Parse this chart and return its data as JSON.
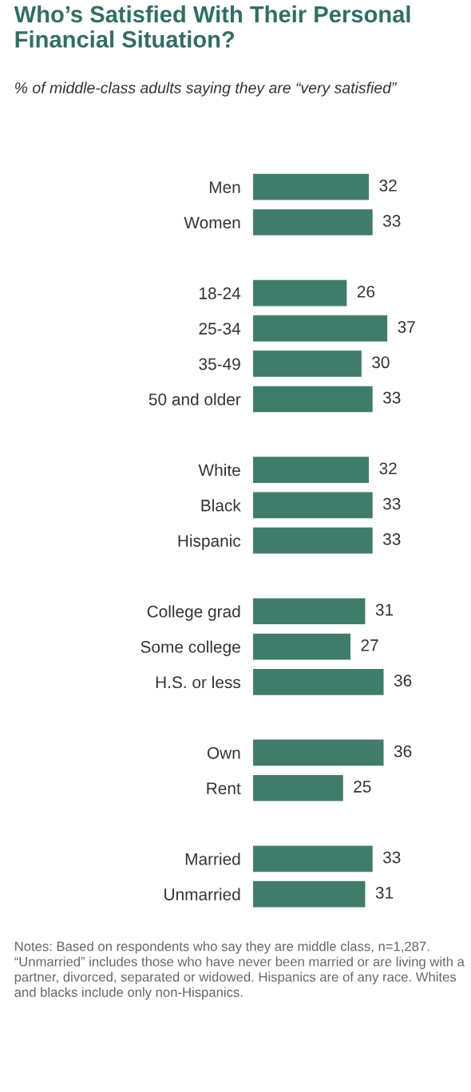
{
  "chart_data": {
    "type": "bar",
    "orientation": "horizontal",
    "title": "Who’s Satisfied With Their Personal Financial Situation?",
    "subtitle": "% of middle-class adults saying they are “very satisfied”",
    "categories": [
      "Men",
      "Women",
      null,
      "18-24",
      "25-34",
      "35-49",
      "50 and older",
      null,
      "White",
      "Black",
      "Hispanic",
      null,
      "College grad",
      "Some college",
      "H.S. or less",
      null,
      "Own",
      "Rent",
      null,
      "Married",
      "Unmarried"
    ],
    "values": [
      32,
      33,
      null,
      26,
      37,
      30,
      33,
      null,
      32,
      33,
      33,
      null,
      31,
      27,
      36,
      null,
      36,
      25,
      null,
      33,
      31
    ],
    "color": "#3f7d6a",
    "data_labels": true,
    "grid": false,
    "legend": false,
    "tick_labels": "y",
    "annotations": [
      "Notes: Based on respondents who say they are middle class, n=1,287. “Unmarried” includes those who have never been married or are living with a partner, divorced, separated or widowed. Hispanics are of any race. Whites and blacks include only non-Hispanics."
    ]
  }
}
